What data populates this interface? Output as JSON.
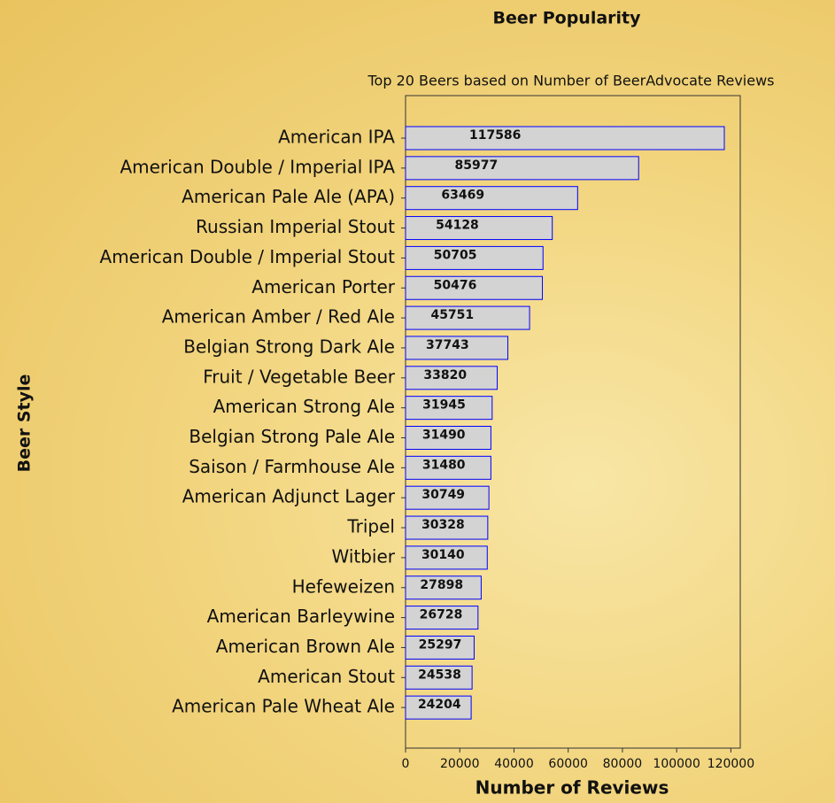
{
  "chart_data": {
    "type": "barh",
    "title": "Beer Popularity",
    "subtitle": "Top 20 Beers based on Number of BeerAdvocate Reviews",
    "xlabel": "Number of Reviews",
    "ylabel": "Beer Style",
    "categories": [
      "American IPA",
      "American Double / Imperial IPA",
      "American Pale Ale (APA)",
      "Russian Imperial Stout",
      "American Double / Imperial Stout",
      "American Porter",
      "American Amber / Red Ale",
      "Belgian Strong Dark Ale",
      "Fruit / Vegetable Beer",
      "American Strong Ale",
      "Belgian Strong Pale Ale",
      "Saison / Farmhouse Ale",
      "American Adjunct Lager",
      "Tripel",
      "Witbier",
      "Hefeweizen",
      "American Barleywine",
      "American Brown Ale",
      "American Stout",
      "American Pale Wheat Ale"
    ],
    "values": [
      117586,
      85977,
      63469,
      54128,
      50705,
      50476,
      45751,
      37743,
      33820,
      31945,
      31490,
      31480,
      30749,
      30328,
      30140,
      27898,
      26728,
      25297,
      24538,
      24204
    ],
    "color": "#d3d3d3",
    "edgecolor": "#0000ff",
    "xlim": [
      0,
      123465
    ],
    "xticks": [
      0,
      20000,
      40000,
      60000,
      80000,
      100000,
      120000
    ],
    "grid": false
  }
}
